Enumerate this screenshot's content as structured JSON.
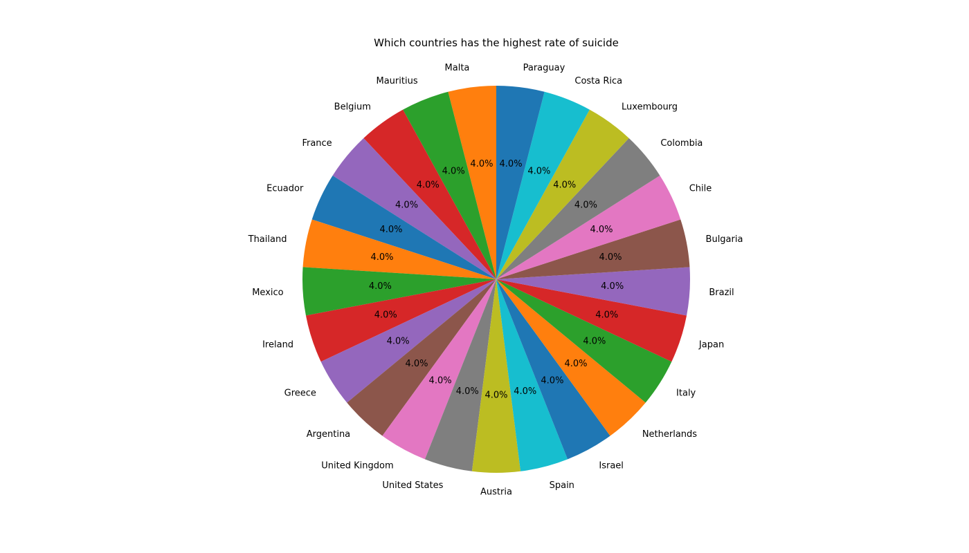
{
  "chart_data": {
    "type": "pie",
    "title": "Which countries has the highest rate of suicide",
    "labels": [
      "Malta",
      "Mauritius",
      "Belgium",
      "France",
      "Ecuador",
      "Thailand",
      "Mexico",
      "Ireland",
      "Greece",
      "Argentina",
      "United Kingdom",
      "United States",
      "Austria",
      "Spain",
      "Israel",
      "Netherlands",
      "Italy",
      "Japan",
      "Brazil",
      "Bulgaria",
      "Chile",
      "Colombia",
      "Luxembourg",
      "Costa Rica",
      "Paraguay"
    ],
    "values": [
      4.0,
      4.0,
      4.0,
      4.0,
      4.0,
      4.0,
      4.0,
      4.0,
      4.0,
      4.0,
      4.0,
      4.0,
      4.0,
      4.0,
      4.0,
      4.0,
      4.0,
      4.0,
      4.0,
      4.0,
      4.0,
      4.0,
      4.0,
      4.0,
      4.0
    ],
    "percent_labels": [
      "4.0%",
      "4.0%",
      "4.0%",
      "4.0%",
      "4.0%",
      "4.0%",
      "4.0%",
      "4.0%",
      "4.0%",
      "4.0%",
      "4.0%",
      "4.0%",
      "4.0%",
      "4.0%",
      "4.0%",
      "4.0%",
      "4.0%",
      "4.0%",
      "4.0%",
      "4.0%",
      "4.0%",
      "4.0%",
      "4.0%",
      "4.0%",
      "4.0%"
    ],
    "start_angle_deg": 90,
    "direction": "counterclockwise",
    "legend": "none",
    "colors": [
      "#ff7f0e",
      "#2ca02c",
      "#d62728",
      "#9467bd",
      "#1f77b4",
      "#ff7f0e",
      "#2ca02c",
      "#d62728",
      "#9467bd",
      "#8c564b",
      "#e377c2",
      "#7f7f7f",
      "#bcbd22",
      "#17becf",
      "#1f77b4",
      "#ff7f0e",
      "#2ca02c",
      "#d62728",
      "#9467bd",
      "#8c564b",
      "#e377c2",
      "#7f7f7f",
      "#bcbd22",
      "#17becf",
      "#1f77b4"
    ]
  }
}
